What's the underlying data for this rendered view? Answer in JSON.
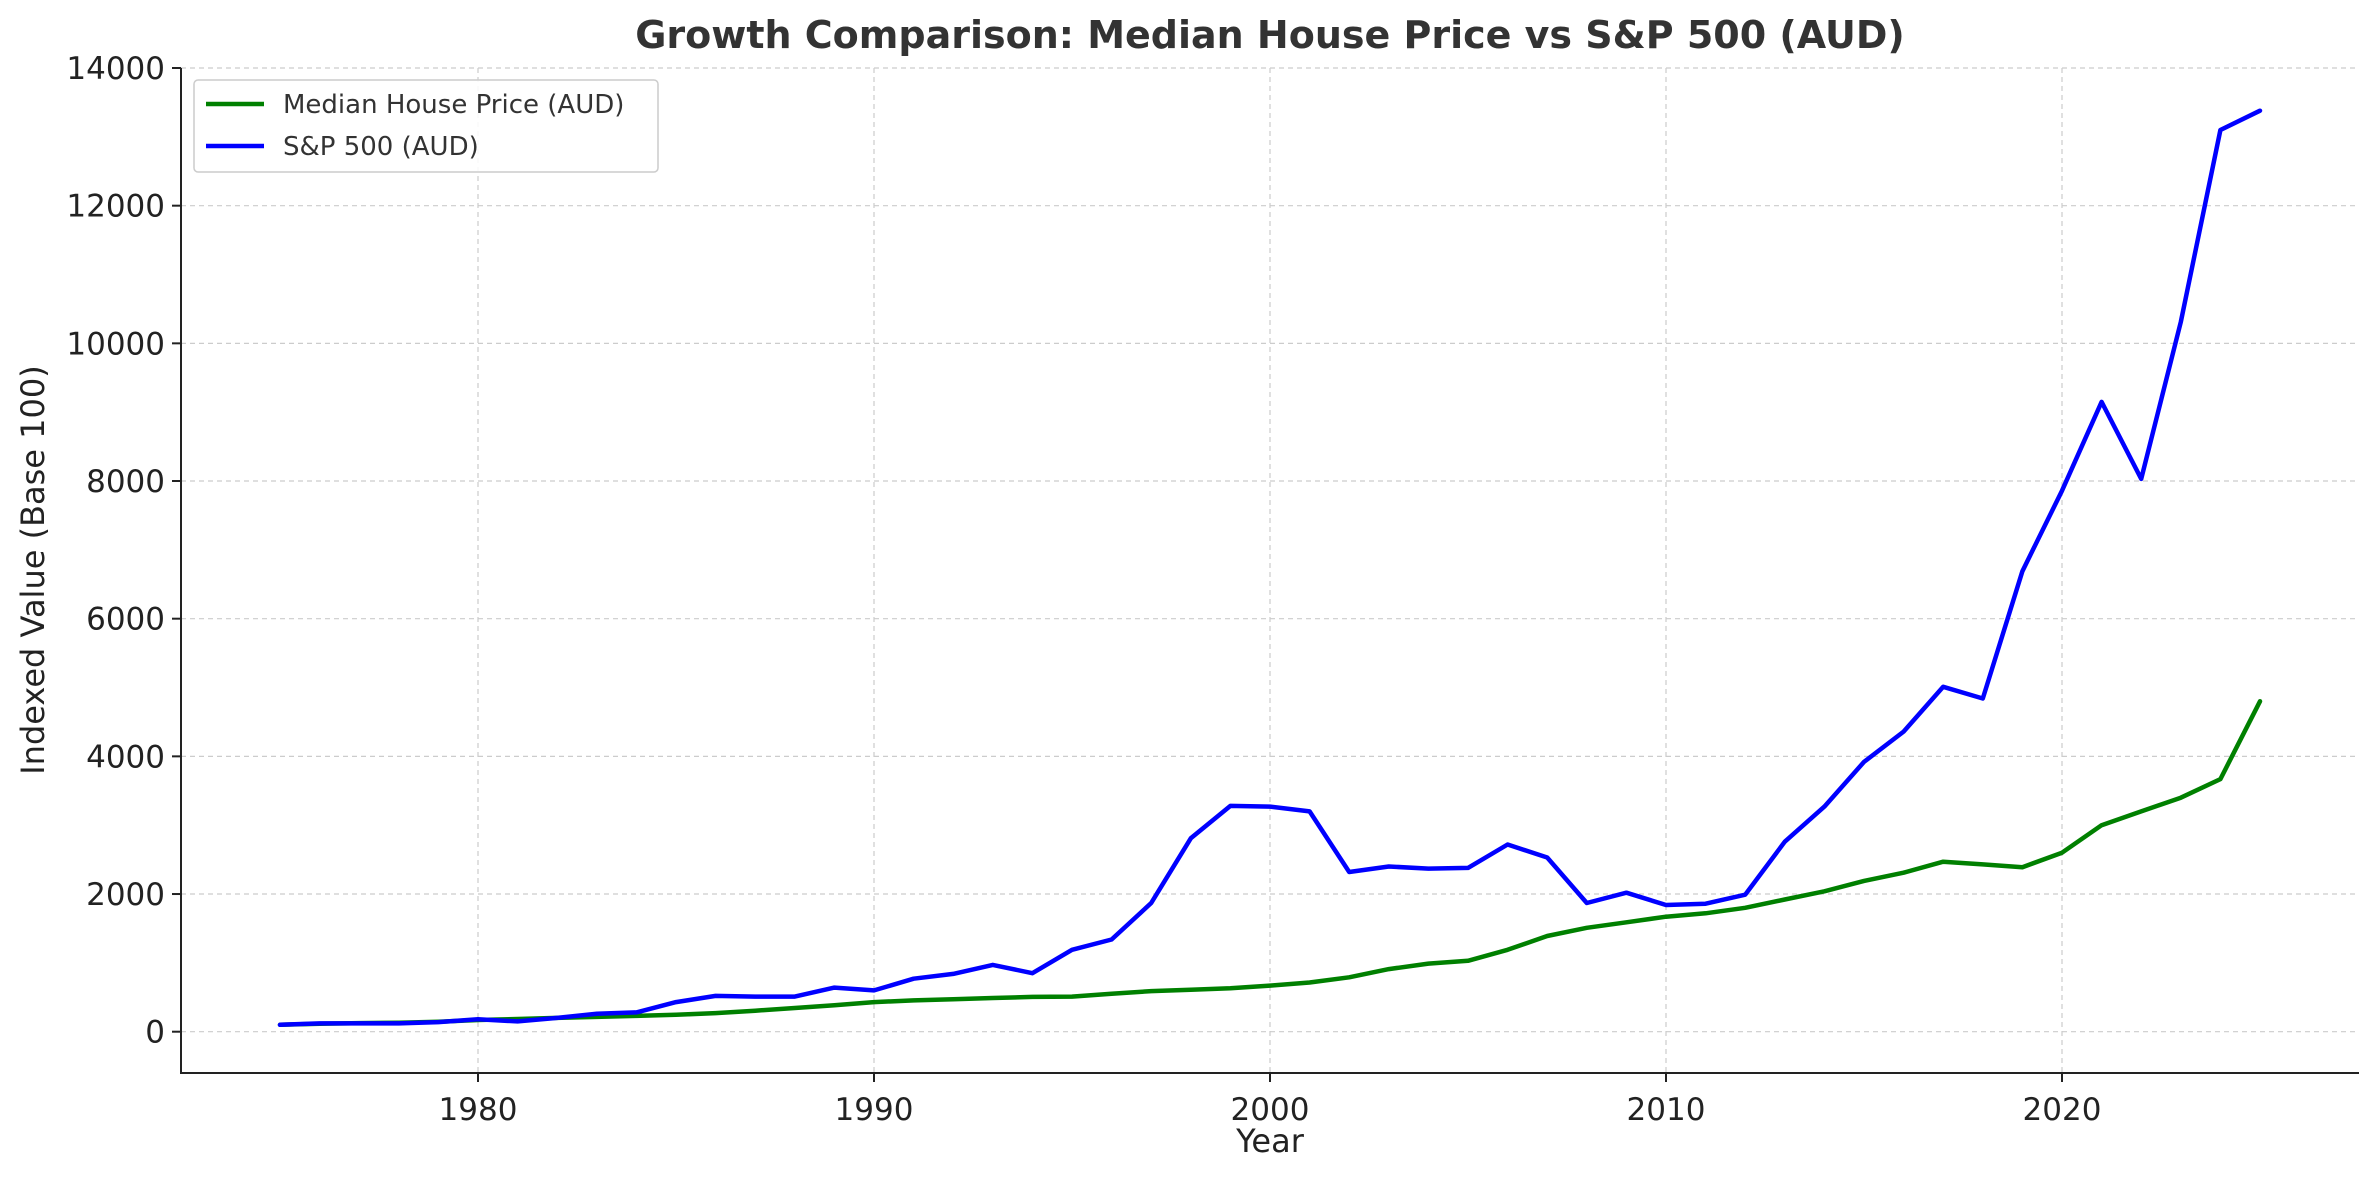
{
  "chart_data": {
    "type": "line",
    "title": "Growth Comparison: Median House Price vs S&P 500 (AUD)",
    "xlabel": "Year",
    "ylabel": "Indexed Value (Base 100)",
    "xlim": [
      1972.5,
      2027.5
    ],
    "ylim": [
      -600,
      14000
    ],
    "xticks": [
      1980,
      1990,
      2000,
      2010,
      2020
    ],
    "yticks": [
      0,
      2000,
      4000,
      6000,
      8000,
      10000,
      12000,
      14000
    ],
    "grid": true,
    "legend_position": "top-left",
    "x": [
      1975,
      1976,
      1977,
      1978,
      1979,
      1980,
      1981,
      1982,
      1983,
      1984,
      1985,
      1986,
      1987,
      1988,
      1989,
      1990,
      1991,
      1992,
      1993,
      1994,
      1995,
      1996,
      1997,
      1998,
      1999,
      2000,
      2001,
      2002,
      2003,
      2004,
      2005,
      2006,
      2007,
      2008,
      2009,
      2010,
      2011,
      2012,
      2013,
      2014,
      2015,
      2016,
      2017,
      2018,
      2019,
      2020,
      2021,
      2022,
      2023,
      2024,
      2025
    ],
    "series": [
      {
        "name": "Median House Price (AUD)",
        "color": "#008000",
        "values": [
          100,
          115,
          125,
          130,
          145,
          170,
          185,
          200,
          215,
          230,
          245,
          270,
          305,
          345,
          385,
          430,
          455,
          470,
          490,
          505,
          510,
          550,
          590,
          610,
          630,
          670,
          715,
          790,
          910,
          990,
          1030,
          1190,
          1390,
          1510,
          1590,
          1670,
          1720,
          1800,
          1920,
          2040,
          2190,
          2310,
          2470,
          2430,
          2390,
          2600,
          3000,
          3200,
          3400,
          3670,
          4800
        ]
      },
      {
        "name": "S&P 500 (AUD)",
        "color": "#0000ff",
        "values": [
          100,
          120,
          120,
          120,
          140,
          180,
          150,
          200,
          260,
          280,
          430,
          520,
          510,
          510,
          640,
          600,
          770,
          840,
          970,
          850,
          1190,
          1340,
          1870,
          2810,
          3280,
          3270,
          3200,
          2320,
          2400,
          2370,
          2380,
          2720,
          2530,
          1870,
          2020,
          1840,
          1860,
          1990,
          2760,
          3270,
          3920,
          4360,
          5010,
          4840,
          6690,
          7860,
          9150,
          8030,
          10310,
          13100,
          13380
        ]
      }
    ]
  }
}
